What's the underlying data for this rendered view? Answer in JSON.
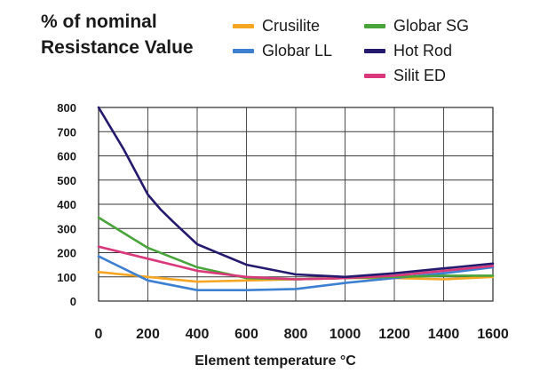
{
  "chart_data": {
    "type": "line",
    "title": "% of nominal Resistance Value",
    "xlabel": "Element temperature °C",
    "ylabel": "",
    "xlim": [
      0,
      1600
    ],
    "ylim": [
      0,
      800
    ],
    "x_ticks": [
      "0",
      "200",
      "400",
      "600",
      "800",
      "1000",
      "1200",
      "1400",
      "1600"
    ],
    "y_ticks": [
      "0",
      "100",
      "200",
      "300",
      "400",
      "500",
      "600",
      "700",
      "800"
    ],
    "grid": true,
    "legend_position": "top-right",
    "series": [
      {
        "name": "Crusilite",
        "color": "#f5a623",
        "x": [
          0,
          200,
          400,
          600,
          800,
          1000,
          1200,
          1400,
          1600
        ],
        "y": [
          120,
          100,
          80,
          85,
          90,
          95,
          95,
          90,
          100
        ]
      },
      {
        "name": "Globar LL",
        "color": "#3d7fd1",
        "x": [
          0,
          200,
          400,
          600,
          800,
          1000,
          1200,
          1400,
          1600
        ],
        "y": [
          185,
          85,
          45,
          45,
          50,
          75,
          95,
          115,
          140
        ]
      },
      {
        "name": "Globar SG",
        "color": "#4aa43c",
        "x": [
          0,
          200,
          400,
          600,
          800,
          1000,
          1200,
          1400,
          1600
        ],
        "y": [
          345,
          220,
          140,
          95,
          90,
          95,
          100,
          105,
          105
        ]
      },
      {
        "name": "Hot Rod",
        "color": "#241a6e",
        "x": [
          0,
          100,
          200,
          250,
          300,
          400,
          600,
          800,
          1000,
          1200,
          1400,
          1600
        ],
        "y": [
          800,
          630,
          440,
          380,
          330,
          235,
          150,
          110,
          100,
          115,
          135,
          155
        ]
      },
      {
        "name": "Silit ED",
        "color": "#d9397a",
        "x": [
          0,
          200,
          400,
          600,
          800,
          1000,
          1200,
          1400,
          1600
        ],
        "y": [
          225,
          175,
          125,
          100,
          90,
          95,
          105,
          125,
          145
        ]
      }
    ]
  }
}
